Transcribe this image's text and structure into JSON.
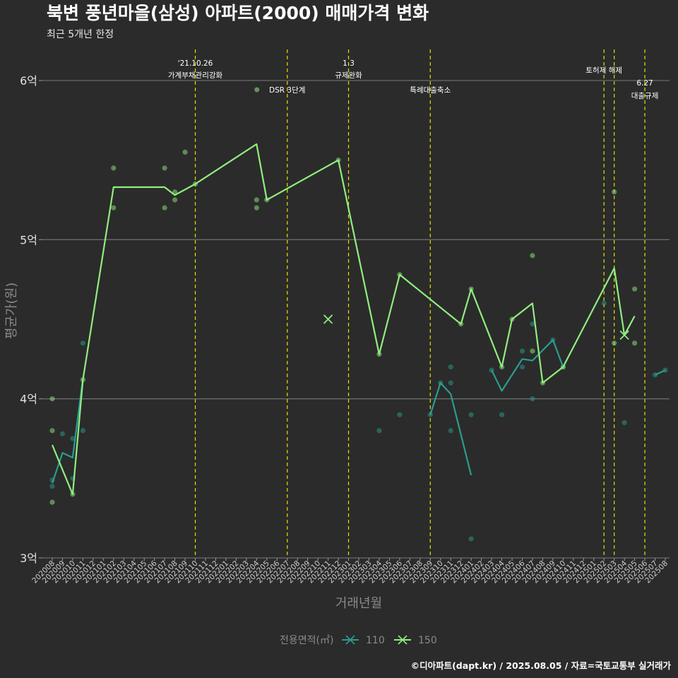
{
  "chart_data": {
    "type": "line",
    "title": "북변 풍년마을(삼성) 아파트(2000) 매매가격 변화",
    "subtitle": "최근 5개년 한정",
    "xlabel": "거래년월",
    "ylabel": "평균가(원)",
    "ylim": [
      3.0,
      6.2
    ],
    "yticks": [
      {
        "value": 3,
        "label": "3억"
      },
      {
        "value": 4,
        "label": "4억"
      },
      {
        "value": 5,
        "label": "5억"
      },
      {
        "value": 6,
        "label": "6억"
      }
    ],
    "categories": [
      "202008",
      "202009",
      "202010",
      "202011",
      "202012",
      "202101",
      "202102",
      "202103",
      "202104",
      "202105",
      "202106",
      "202107",
      "202108",
      "202109",
      "202110",
      "202111",
      "202112",
      "202201",
      "202202",
      "202203",
      "202204",
      "202205",
      "202206",
      "202207",
      "202208",
      "202209",
      "202210",
      "202211",
      "202212",
      "202301",
      "202302",
      "202303",
      "202304",
      "202305",
      "202306",
      "202307",
      "202308",
      "202309",
      "202310",
      "202311",
      "202312",
      "202401",
      "202402",
      "202403",
      "202404",
      "202405",
      "202406",
      "202407",
      "202408",
      "202409",
      "202410",
      "202411",
      "202412",
      "202501",
      "202502",
      "202503",
      "202504",
      "202505",
      "202506",
      "202507",
      "202508"
    ],
    "grid": true,
    "legend": {
      "title": "전용면적(㎡)",
      "position": "bottom",
      "entries": [
        {
          "label": "110",
          "color": "#2a9d8f"
        },
        {
          "label": "150",
          "color": "#90ee7e"
        }
      ]
    },
    "series": [
      {
        "name": "110",
        "color": "#2a9d8f",
        "line": [
          {
            "x": "202008",
            "y": 3.47
          },
          {
            "x": "202009",
            "y": 3.66
          },
          {
            "x": "202010",
            "y": 3.63
          },
          {
            "x": "202011",
            "y": 4.13
          },
          null,
          {
            "x": "202309",
            "y": 3.9
          },
          {
            "x": "202310",
            "y": 4.1
          },
          {
            "x": "202311",
            "y": 4.03
          },
          {
            "x": "202401",
            "y": 3.52
          },
          null,
          {
            "x": "202403",
            "y": 4.18
          },
          {
            "x": "202404",
            "y": 4.05
          },
          {
            "x": "202406",
            "y": 4.25
          },
          {
            "x": "202407",
            "y": 4.24
          },
          {
            "x": "202409",
            "y": 4.37
          },
          {
            "x": "202410",
            "y": 4.2
          },
          null,
          {
            "x": "202507",
            "y": 4.15
          },
          {
            "x": "202508",
            "y": 4.18
          }
        ],
        "points": [
          {
            "x": "202008",
            "y": 3.45
          },
          {
            "x": "202008",
            "y": 3.49
          },
          {
            "x": "202009",
            "y": 3.78
          },
          {
            "x": "202010",
            "y": 3.75
          },
          {
            "x": "202010",
            "y": 3.5
          },
          {
            "x": "202011",
            "y": 3.8
          },
          {
            "x": "202011",
            "y": 4.35
          },
          {
            "x": "202304",
            "y": 3.8
          },
          {
            "x": "202306",
            "y": 3.9
          },
          {
            "x": "202309",
            "y": 3.9
          },
          {
            "x": "202310",
            "y": 4.1
          },
          {
            "x": "202311",
            "y": 4.1
          },
          {
            "x": "202311",
            "y": 4.2
          },
          {
            "x": "202311",
            "y": 3.8
          },
          {
            "x": "202401",
            "y": 3.9
          },
          {
            "x": "202401",
            "y": 3.12
          },
          {
            "x": "202403",
            "y": 4.18
          },
          {
            "x": "202404",
            "y": 3.9
          },
          {
            "x": "202406",
            "y": 4.2
          },
          {
            "x": "202406",
            "y": 4.3
          },
          {
            "x": "202407",
            "y": 4.0
          },
          {
            "x": "202407",
            "y": 4.47
          },
          {
            "x": "202409",
            "y": 4.37
          },
          {
            "x": "202410",
            "y": 4.2
          },
          {
            "x": "202502",
            "y": 4.6
          },
          {
            "x": "202504",
            "y": 3.85
          },
          {
            "x": "202507",
            "y": 4.15
          },
          {
            "x": "202508",
            "y": 4.18
          }
        ]
      },
      {
        "name": "150",
        "color": "#90ee7e",
        "line": [
          {
            "x": "202008",
            "y": 3.71
          },
          {
            "x": "202010",
            "y": 3.4
          },
          {
            "x": "202011",
            "y": 4.12
          },
          {
            "x": "202102",
            "y": 5.33
          },
          {
            "x": "202107",
            "y": 5.33
          },
          {
            "x": "202108",
            "y": 5.28
          },
          {
            "x": "202110",
            "y": 5.35
          },
          {
            "x": "202204",
            "y": 5.6
          },
          {
            "x": "202205",
            "y": 5.25
          },
          {
            "x": "202212",
            "y": 5.5
          },
          {
            "x": "202304",
            "y": 4.28
          },
          {
            "x": "202306",
            "y": 4.78
          },
          {
            "x": "202312",
            "y": 4.47
          },
          {
            "x": "202401",
            "y": 4.69
          },
          {
            "x": "202404",
            "y": 4.2
          },
          {
            "x": "202405",
            "y": 4.5
          },
          {
            "x": "202407",
            "y": 4.6
          },
          {
            "x": "202408",
            "y": 4.1
          },
          {
            "x": "202410",
            "y": 4.2
          },
          {
            "x": "202503",
            "y": 4.82
          },
          {
            "x": "202504",
            "y": 4.4
          },
          {
            "x": "202505",
            "y": 4.52
          }
        ],
        "points": [
          {
            "x": "202008",
            "y": 4.0
          },
          {
            "x": "202008",
            "y": 3.8
          },
          {
            "x": "202008",
            "y": 3.35
          },
          {
            "x": "202010",
            "y": 3.4
          },
          {
            "x": "202011",
            "y": 4.12
          },
          {
            "x": "202102",
            "y": 5.45
          },
          {
            "x": "202102",
            "y": 5.2
          },
          {
            "x": "202107",
            "y": 5.45
          },
          {
            "x": "202107",
            "y": 5.2
          },
          {
            "x": "202108",
            "y": 5.3
          },
          {
            "x": "202108",
            "y": 5.25
          },
          {
            "x": "202109",
            "y": 5.55
          },
          {
            "x": "202110",
            "y": 5.35
          },
          {
            "x": "202204",
            "y": 5.25
          },
          {
            "x": "202204",
            "y": 5.2
          },
          {
            "x": "202205",
            "y": 5.25
          },
          {
            "x": "202212",
            "y": 5.5
          },
          {
            "x": "202304",
            "y": 4.28
          },
          {
            "x": "202306",
            "y": 4.78
          },
          {
            "x": "202312",
            "y": 4.47
          },
          {
            "x": "202401",
            "y": 4.69
          },
          {
            "x": "202404",
            "y": 4.2
          },
          {
            "x": "202405",
            "y": 4.5
          },
          {
            "x": "202407",
            "y": 4.9
          },
          {
            "x": "202407",
            "y": 4.3
          },
          {
            "x": "202408",
            "y": 4.1
          },
          {
            "x": "202410",
            "y": 4.2
          },
          {
            "x": "202503",
            "y": 5.3
          },
          {
            "x": "202503",
            "y": 4.35
          },
          {
            "x": "202505",
            "y": 4.69
          },
          {
            "x": "202505",
            "y": 4.35
          }
        ],
        "markers": [
          {
            "x": "202211",
            "y": 4.5
          },
          {
            "x": "202504",
            "y": 4.4
          }
        ]
      }
    ],
    "events": [
      {
        "x": "202110",
        "lines": [
          "'21.10.26",
          "가계부채관리강화"
        ],
        "level": "top"
      },
      {
        "x": "202207",
        "lines": [
          "DSR 3단계"
        ],
        "level": "mid",
        "dot": true
      },
      {
        "x": "202301",
        "lines": [
          "1.3",
          "규제완화"
        ],
        "level": "top"
      },
      {
        "x": "202309",
        "lines": [
          "특례대출축소"
        ],
        "level": "mid"
      },
      {
        "x": "202502",
        "lines": [
          "토허제 해제"
        ],
        "level": "high"
      },
      {
        "x": "202503",
        "lines": [],
        "level": "none"
      },
      {
        "x": "202506",
        "lines": [
          "6.27",
          "대출규제"
        ],
        "level": "low"
      }
    ],
    "caption": "©디아파트(dapt.kr) / 2025.08.05 / 자료=국토교통부 실거래가"
  }
}
